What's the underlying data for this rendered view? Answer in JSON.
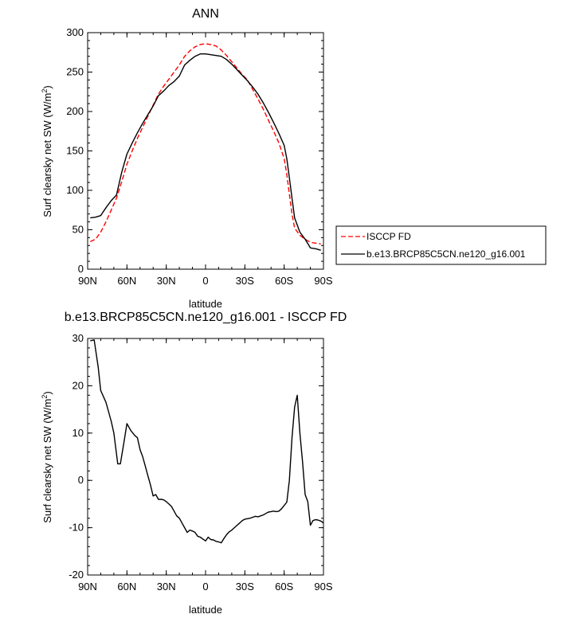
{
  "chart_data": [
    {
      "type": "line",
      "title": "ANN",
      "xlabel": "latitude",
      "ylabel": "Surf clearsky net SW (W/m",
      "ylabel_sup": "2",
      "ylabel_close": ")",
      "x_ticks": [
        {
          "v": -90,
          "label": "90N"
        },
        {
          "v": -60,
          "label": "60N"
        },
        {
          "v": -30,
          "label": "30N"
        },
        {
          "v": 0,
          "label": "0"
        },
        {
          "v": 30,
          "label": "30S"
        },
        {
          "v": 60,
          "label": "60S"
        },
        {
          "v": 90,
          "label": "90S"
        }
      ],
      "y_ticks": [
        0,
        50,
        100,
        150,
        200,
        250,
        300
      ],
      "xlim": [
        -90,
        90
      ],
      "ylim": [
        0,
        300
      ],
      "legend": {
        "placement": "right"
      },
      "series": [
        {
          "name": "ISCCP FD",
          "color": "#ff0000",
          "dash": "dashed",
          "x": [
            -88,
            -84,
            -80,
            -76,
            -72,
            -68,
            -64,
            -60,
            -56,
            -52,
            -48,
            -44,
            -40,
            -36,
            -32,
            -28,
            -24,
            -20,
            -16,
            -12,
            -8,
            -4,
            0,
            4,
            8,
            12,
            16,
            20,
            24,
            28,
            32,
            36,
            40,
            44,
            48,
            52,
            56,
            60,
            62,
            64,
            66,
            68,
            72,
            76,
            80,
            84,
            88
          ],
          "y": [
            35,
            38,
            47,
            60,
            75,
            90,
            111,
            133,
            150,
            166,
            180,
            194,
            208,
            222,
            232,
            241,
            250,
            259,
            270,
            277,
            282,
            285,
            286,
            285,
            283,
            278,
            271,
            263,
            255,
            247,
            240,
            228,
            216,
            203,
            189,
            175,
            160,
            140,
            120,
            95,
            70,
            52,
            43,
            38,
            34,
            33,
            32
          ]
        },
        {
          "name": "b.e13.BRCP85C5CN.ne120_g16.001",
          "color": "#000000",
          "dash": "solid",
          "x": [
            -88,
            -84,
            -80,
            -76,
            -72,
            -68,
            -64,
            -60,
            -56,
            -52,
            -48,
            -44,
            -40,
            -36,
            -32,
            -28,
            -24,
            -20,
            -16,
            -12,
            -8,
            -4,
            0,
            4,
            8,
            12,
            16,
            20,
            24,
            28,
            32,
            36,
            40,
            44,
            48,
            52,
            56,
            60,
            62,
            64,
            66,
            68,
            72,
            76,
            80,
            84,
            88
          ],
          "y": [
            65,
            66,
            68,
            78,
            87,
            94,
            123,
            146,
            160,
            173,
            185,
            196,
            207,
            220,
            226,
            233,
            238,
            245,
            259,
            265,
            270,
            273,
            273,
            272,
            271,
            270,
            266,
            260,
            253,
            246,
            239,
            231,
            222,
            211,
            199,
            186,
            172,
            157,
            140,
            116,
            90,
            65,
            47,
            38,
            27,
            26,
            24
          ]
        }
      ]
    },
    {
      "type": "line",
      "title": "b.e13.BRCP85C5CN.ne120_g16.001 - ISCCP FD",
      "xlabel": "latitude",
      "ylabel": "Surf clearsky net SW (W/m",
      "ylabel_sup": "2",
      "ylabel_close": ")",
      "x_ticks": [
        {
          "v": -90,
          "label": "90N"
        },
        {
          "v": -60,
          "label": "60N"
        },
        {
          "v": -30,
          "label": "30N"
        },
        {
          "v": 0,
          "label": "0"
        },
        {
          "v": 30,
          "label": "30S"
        },
        {
          "v": 60,
          "label": "60S"
        },
        {
          "v": 90,
          "label": "90S"
        }
      ],
      "y_ticks": [
        -20,
        -10,
        0,
        10,
        20,
        30
      ],
      "xlim": [
        -90,
        90
      ],
      "ylim": [
        -20,
        30
      ],
      "series": [
        {
          "color": "#000000",
          "dash": "solid",
          "x": [
            -88,
            -85,
            -82,
            -80,
            -76,
            -72,
            -70,
            -67,
            -65,
            -62,
            -60,
            -57,
            -54,
            -52,
            -50,
            -48,
            -46,
            -44,
            -42,
            -40,
            -38,
            -36,
            -34,
            -32,
            -30,
            -28,
            -26,
            -24,
            -22,
            -20,
            -18,
            -16,
            -14,
            -12,
            -10,
            -8,
            -6,
            -4,
            -2,
            0,
            2,
            4,
            6,
            8,
            10,
            12,
            14,
            16,
            18,
            20,
            22,
            24,
            26,
            28,
            30,
            32,
            34,
            36,
            38,
            40,
            42,
            44,
            46,
            48,
            50,
            52,
            54,
            56,
            58,
            60,
            62,
            64,
            66,
            68,
            70,
            72,
            74,
            76,
            78,
            80,
            82,
            84,
            86,
            88,
            90
          ],
          "y": [
            29.5,
            29.7,
            24.0,
            19.0,
            16.5,
            12.5,
            10.0,
            3.5,
            3.5,
            8.5,
            12.0,
            10.5,
            9.5,
            9.0,
            6.5,
            5.0,
            3.0,
            1.0,
            -1.0,
            -3.3,
            -3.0,
            -4.0,
            -4.0,
            -4.1,
            -4.5,
            -5.0,
            -5.5,
            -6.5,
            -7.5,
            -8.0,
            -9.0,
            -10.0,
            -11.0,
            -10.5,
            -10.7,
            -11.0,
            -11.8,
            -12.0,
            -12.4,
            -12.8,
            -12.0,
            -12.5,
            -12.6,
            -12.9,
            -13.0,
            -13.2,
            -12.3,
            -11.5,
            -10.9,
            -10.5,
            -10.0,
            -9.5,
            -9.0,
            -8.5,
            -8.2,
            -8.1,
            -8.0,
            -7.8,
            -7.6,
            -7.7,
            -7.5,
            -7.3,
            -7.0,
            -6.7,
            -6.6,
            -6.5,
            -6.6,
            -6.5,
            -6.0,
            -5.3,
            -4.6,
            0,
            9.0,
            15.5,
            18.0,
            10.0,
            4.0,
            -3.0,
            -4.5,
            -9.5,
            -8.5,
            -8.3,
            -8.4,
            -8.6,
            -9.0
          ]
        }
      ]
    }
  ]
}
